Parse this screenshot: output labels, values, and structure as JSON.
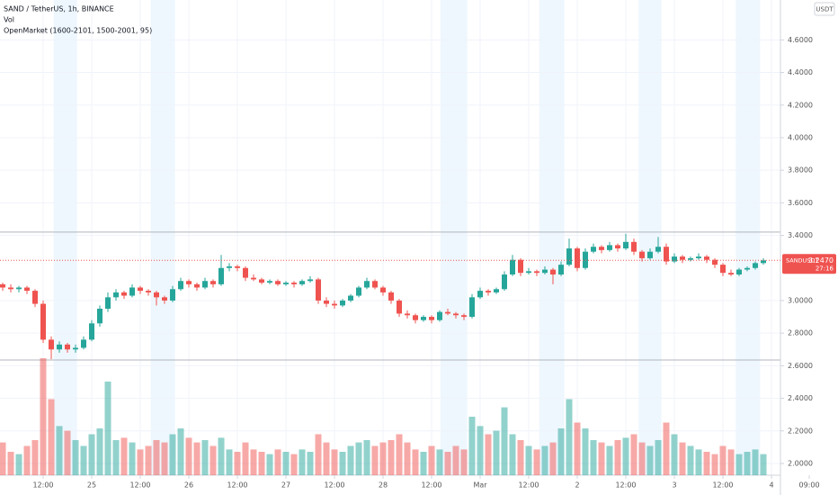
{
  "chart_data": {
    "type": "candlestick",
    "title": "SAND / TetherUS, 1h, BINANCE",
    "volume_label": "Vol",
    "indicator_label": "OpenMarket (1600-2101, 1500-2001, 95)",
    "currency": "USDT",
    "symbol_label": "SANDUSDT",
    "last_price": {
      "value": 3.247,
      "label": "3.2470"
    },
    "countdown": "27:16",
    "up_color": "#26a69a",
    "down_color": "#ef5350",
    "session_color": "#e3f2fd",
    "grid": true,
    "ylim": [
      1.928,
      4.845
    ],
    "yticks": [
      {
        "value": 2.0,
        "label": "2.0000"
      },
      {
        "value": 2.2,
        "label": "2.2000"
      },
      {
        "value": 2.4,
        "label": "2.4000"
      },
      {
        "value": 2.6,
        "label": "2.6000"
      },
      {
        "value": 2.8,
        "label": "2.8000"
      },
      {
        "value": 3.0,
        "label": "3.0000"
      },
      {
        "value": 3.4,
        "label": "3.4000"
      },
      {
        "value": 3.6,
        "label": "3.6000"
      },
      {
        "value": 3.8,
        "label": "3.8000"
      },
      {
        "value": 4.0,
        "label": "4.0000"
      },
      {
        "value": 4.2,
        "label": "4.2000"
      },
      {
        "value": 4.4,
        "label": "4.4000"
      },
      {
        "value": 4.6,
        "label": "4.6000"
      }
    ],
    "xlim": [
      -0.333,
      96.111
    ],
    "xticks": [
      {
        "value": 5,
        "label": "12:00"
      },
      {
        "value": 11,
        "label": "25"
      },
      {
        "value": 17,
        "label": "12:00"
      },
      {
        "value": 23,
        "label": "26"
      },
      {
        "value": 29,
        "label": "12:00"
      },
      {
        "value": 35,
        "label": "27"
      },
      {
        "value": 41,
        "label": "12:00"
      },
      {
        "value": 47,
        "label": "28"
      },
      {
        "value": 53,
        "label": "12:00"
      },
      {
        "value": 59,
        "label": "Mar"
      },
      {
        "value": 65,
        "label": "12:00"
      },
      {
        "value": 71,
        "label": "2"
      },
      {
        "value": 77,
        "label": "12:00"
      },
      {
        "value": 83,
        "label": "3"
      },
      {
        "value": 89,
        "label": "12:00"
      },
      {
        "value": 95,
        "label": "4"
      },
      {
        "value": 99.67,
        "label": "09:00"
      }
    ],
    "hlines": [
      3.42,
      2.635
    ],
    "sessions": [
      [
        6.3,
        9.2
      ],
      [
        18.3,
        21.3
      ],
      [
        54.1,
        57.4
      ],
      [
        66.3,
        69.4
      ],
      [
        78.6,
        81.4
      ],
      [
        90.6,
        93.6
      ]
    ],
    "vlim": [
      0,
      100
    ],
    "candles": [
      [
        3.1,
        3.11,
        3.06,
        3.08
      ],
      [
        3.08,
        3.1,
        3.05,
        3.07
      ],
      [
        3.07,
        3.09,
        3.05,
        3.08
      ],
      [
        3.08,
        3.09,
        3.04,
        3.06
      ],
      [
        3.06,
        3.07,
        2.96,
        2.98
      ],
      [
        2.98,
        3.0,
        2.74,
        2.76
      ],
      [
        2.76,
        2.78,
        2.64,
        2.7
      ],
      [
        2.7,
        2.75,
        2.68,
        2.73
      ],
      [
        2.73,
        2.74,
        2.68,
        2.7
      ],
      [
        2.7,
        2.73,
        2.68,
        2.71
      ],
      [
        2.71,
        2.78,
        2.7,
        2.76
      ],
      [
        2.76,
        2.88,
        2.75,
        2.86
      ],
      [
        2.86,
        2.97,
        2.84,
        2.95
      ],
      [
        2.95,
        3.05,
        2.93,
        3.02
      ],
      [
        3.02,
        3.07,
        3.0,
        3.05
      ],
      [
        3.05,
        3.06,
        3.01,
        3.03
      ],
      [
        3.03,
        3.1,
        3.02,
        3.08
      ],
      [
        3.08,
        3.09,
        3.04,
        3.06
      ],
      [
        3.06,
        3.07,
        3.03,
        3.05
      ],
      [
        3.05,
        3.06,
        2.97,
        3.02
      ],
      [
        3.02,
        3.03,
        2.98,
        3.0
      ],
      [
        3.0,
        3.09,
        2.99,
        3.07
      ],
      [
        3.07,
        3.14,
        3.06,
        3.12
      ],
      [
        3.12,
        3.13,
        3.08,
        3.1
      ],
      [
        3.1,
        3.11,
        3.06,
        3.08
      ],
      [
        3.08,
        3.14,
        3.07,
        3.12
      ],
      [
        3.12,
        3.13,
        3.08,
        3.1
      ],
      [
        3.1,
        3.28,
        3.09,
        3.2
      ],
      [
        3.2,
        3.23,
        3.18,
        3.21
      ],
      [
        3.21,
        3.22,
        3.18,
        3.2
      ],
      [
        3.2,
        3.21,
        3.12,
        3.14
      ],
      [
        3.14,
        3.16,
        3.12,
        3.13
      ],
      [
        3.13,
        3.14,
        3.1,
        3.11
      ],
      [
        3.11,
        3.13,
        3.1,
        3.12
      ],
      [
        3.12,
        3.13,
        3.09,
        3.1
      ],
      [
        3.1,
        3.12,
        3.09,
        3.11
      ],
      [
        3.11,
        3.12,
        3.08,
        3.1
      ],
      [
        3.1,
        3.13,
        3.09,
        3.12
      ],
      [
        3.12,
        3.15,
        3.11,
        3.13
      ],
      [
        3.13,
        3.14,
        2.98,
        3.0
      ],
      [
        3.0,
        3.02,
        2.96,
        2.98
      ],
      [
        2.98,
        3.0,
        2.95,
        2.97
      ],
      [
        2.97,
        3.01,
        2.96,
        3.0
      ],
      [
        3.0,
        3.04,
        2.99,
        3.03
      ],
      [
        3.03,
        3.09,
        3.02,
        3.08
      ],
      [
        3.08,
        3.14,
        3.07,
        3.12
      ],
      [
        3.12,
        3.13,
        3.07,
        3.08
      ],
      [
        3.08,
        3.09,
        3.03,
        3.05
      ],
      [
        3.05,
        3.06,
        2.98,
        3.0
      ],
      [
        3.0,
        3.01,
        2.9,
        2.92
      ],
      [
        2.92,
        2.94,
        2.89,
        2.91
      ],
      [
        2.91,
        2.92,
        2.86,
        2.88
      ],
      [
        2.88,
        2.91,
        2.87,
        2.9
      ],
      [
        2.9,
        2.91,
        2.86,
        2.88
      ],
      [
        2.88,
        2.94,
        2.87,
        2.93
      ],
      [
        2.93,
        2.95,
        2.91,
        2.92
      ],
      [
        2.92,
        2.93,
        2.89,
        2.91
      ],
      [
        2.91,
        2.92,
        2.88,
        2.9
      ],
      [
        2.9,
        3.04,
        2.89,
        3.02
      ],
      [
        3.02,
        3.08,
        3.01,
        3.06
      ],
      [
        3.06,
        3.07,
        3.03,
        3.05
      ],
      [
        3.05,
        3.08,
        3.04,
        3.07
      ],
      [
        3.07,
        3.18,
        3.06,
        3.16
      ],
      [
        3.16,
        3.28,
        3.15,
        3.25
      ],
      [
        3.25,
        3.26,
        3.15,
        3.17
      ],
      [
        3.17,
        3.2,
        3.16,
        3.18
      ],
      [
        3.18,
        3.19,
        3.15,
        3.17
      ],
      [
        3.17,
        3.21,
        3.16,
        3.19
      ],
      [
        3.19,
        3.2,
        3.1,
        3.16
      ],
      [
        3.16,
        3.24,
        3.15,
        3.22
      ],
      [
        3.22,
        3.38,
        3.21,
        3.32
      ],
      [
        3.32,
        3.33,
        3.18,
        3.2
      ],
      [
        3.2,
        3.32,
        3.19,
        3.3
      ],
      [
        3.3,
        3.35,
        3.29,
        3.33
      ],
      [
        3.33,
        3.34,
        3.29,
        3.31
      ],
      [
        3.31,
        3.36,
        3.3,
        3.34
      ],
      [
        3.34,
        3.35,
        3.3,
        3.32
      ],
      [
        3.32,
        3.41,
        3.31,
        3.36
      ],
      [
        3.36,
        3.38,
        3.28,
        3.3
      ],
      [
        3.3,
        3.31,
        3.24,
        3.26
      ],
      [
        3.26,
        3.32,
        3.25,
        3.3
      ],
      [
        3.3,
        3.39,
        3.29,
        3.33
      ],
      [
        3.33,
        3.35,
        3.22,
        3.24
      ],
      [
        3.24,
        3.29,
        3.23,
        3.27
      ],
      [
        3.27,
        3.28,
        3.23,
        3.25
      ],
      [
        3.25,
        3.27,
        3.24,
        3.26
      ],
      [
        3.26,
        3.29,
        3.25,
        3.27
      ],
      [
        3.27,
        3.28,
        3.23,
        3.25
      ],
      [
        3.25,
        3.26,
        3.2,
        3.22
      ],
      [
        3.22,
        3.23,
        3.15,
        3.17
      ],
      [
        3.17,
        3.19,
        3.15,
        3.16
      ],
      [
        3.16,
        3.2,
        3.15,
        3.19
      ],
      [
        3.19,
        3.21,
        3.18,
        3.2
      ],
      [
        3.2,
        3.24,
        3.19,
        3.23
      ],
      [
        3.23,
        3.26,
        3.22,
        3.247
      ]
    ],
    "volume": [
      28,
      20,
      18,
      25,
      30,
      100,
      65,
      42,
      38,
      30,
      25,
      35,
      40,
      80,
      30,
      32,
      28,
      22,
      25,
      30,
      28,
      35,
      40,
      32,
      28,
      30,
      25,
      32,
      22,
      20,
      28,
      22,
      20,
      18,
      22,
      20,
      18,
      22,
      20,
      35,
      28,
      22,
      20,
      25,
      28,
      30,
      25,
      28,
      30,
      35,
      28,
      22,
      20,
      25,
      22,
      20,
      25,
      22,
      50,
      42,
      35,
      38,
      58,
      35,
      30,
      25,
      22,
      25,
      28,
      40,
      65,
      45,
      40,
      30,
      28,
      25,
      30,
      32,
      35,
      28,
      25,
      30,
      45,
      35,
      28,
      25,
      22,
      20,
      18,
      25,
      22,
      18,
      20,
      22,
      18
    ]
  }
}
